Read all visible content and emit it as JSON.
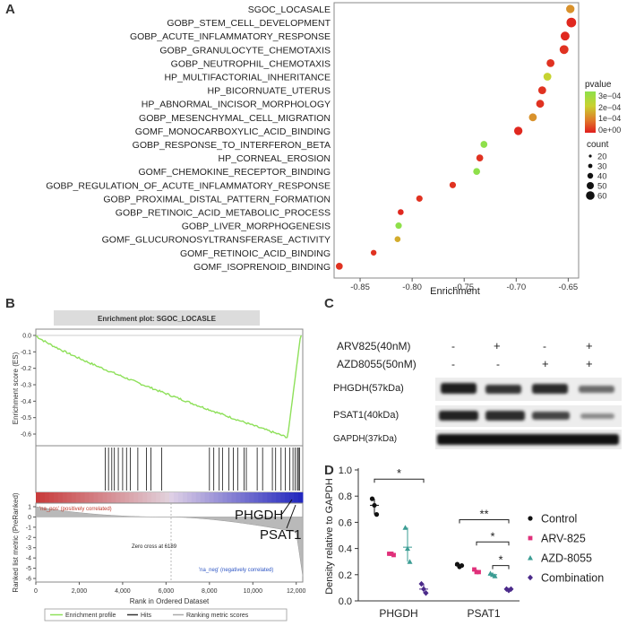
{
  "panels": {
    "a": "A",
    "b": "B",
    "c": "C",
    "d": "D"
  },
  "panel_a": {
    "chart_data": {
      "type": "scatter",
      "terms": [
        "SGOC_LOCASALE",
        "GOBP_STEM_CELL_DEVELOPMENT",
        "GOBP_ACUTE_INFLAMMATORY_RESPONSE",
        "GOBP_GRANULOCYTE_CHEMOTAXIS",
        "GOBP_NEUTROPHIL_CHEMOTAXIS",
        "HP_MULTIFACTORIAL_INHERITANCE",
        "HP_BICORNUATE_UTERUS",
        "HP_ABNORMAL_INCISOR_MORPHOLOGY",
        "GOBP_MESENCHYMAL_CELL_MIGRATION",
        "GOMF_MONOCARBOXYLIC_ACID_BINDING",
        "GOBP_RESPONSE_TO_INTERFERON_BETA",
        "HP_CORNEAL_EROSION",
        "GOMF_CHEMOKINE_RECEPTOR_BINDING",
        "GOBP_REGULATION_OF_ACUTE_INFLAMMATORY_RESPONSE",
        "GOBP_PROXIMAL_DISTAL_PATTERN_FORMATION",
        "GOBP_RETINOIC_ACID_METABOLIC_PROCESS",
        "GOBP_LIVER_MORPHOGENESIS",
        "GOMF_GLUCURONOSYLTRANSFERASE_ACTIVITY",
        "GOMF_RETINOIC_ACID_BINDING",
        "GOMF_ISOPRENOID_BINDING"
      ],
      "enrichment": [
        -0.648,
        -0.647,
        -0.653,
        -0.654,
        -0.667,
        -0.67,
        -0.675,
        -0.677,
        -0.684,
        -0.698,
        -0.731,
        -0.735,
        -0.738,
        -0.761,
        -0.793,
        -0.811,
        -0.813,
        -0.814,
        -0.837,
        -0.87
      ],
      "pvalue": [
        0.00012,
        1e-05,
        1e-05,
        2e-05,
        2e-05,
        0.0002,
        2e-05,
        2e-05,
        0.00012,
        1e-05,
        0.0003,
        2e-05,
        0.0003,
        2e-05,
        2e-05,
        1e-05,
        0.0003,
        0.00015,
        2e-05,
        2e-05
      ],
      "count": [
        45,
        58,
        50,
        50,
        40,
        40,
        40,
        40,
        40,
        45,
        30,
        30,
        30,
        25,
        25,
        20,
        25,
        20,
        18,
        30
      ],
      "xlabel": "Enrichment",
      "xticks": [
        "-0.85",
        "-0.80",
        "-0.75",
        "-0.70",
        "-0.65"
      ],
      "xlim": [
        -0.875,
        -0.64
      ],
      "legend_pvalue_title": "pvalue",
      "legend_pvalue_ticks": [
        "3e−04",
        "2e−04",
        "1e−04",
        "0e+00"
      ],
      "legend_count_title": "count",
      "legend_count_values": [
        "20",
        "30",
        "40",
        "50",
        "60"
      ]
    }
  },
  "panel_b": {
    "title": "Enrichment plot: SGOC_LOCASLE",
    "es_ylabel": "Enrichment score (ES)",
    "es_yticks": [
      "0.0",
      "-0.1",
      "-0.2",
      "-0.3",
      "-0.4",
      "-0.5",
      "-0.6"
    ],
    "metric_ylabel": "Ranked list metric (PreRanked)",
    "metric_yticks": [
      "1",
      "0",
      "-1",
      "-2",
      "-3",
      "-4",
      "-5",
      "-6"
    ],
    "xticks": [
      "0",
      "2,000",
      "4,000",
      "6,000",
      "8,000",
      "10,000",
      "12,000"
    ],
    "xlabel": "Rank in Ordered Dataset",
    "pos_label": "'na_pos' (positively correlated)",
    "neg_label": "'na_neg' (negatively correlated)",
    "zero_cross": "Zero cross at 6189",
    "gene1": "PHGDH",
    "gene2": "PSAT1",
    "legend_profile": "Enrichment profile",
    "legend_hits": "Hits",
    "legend_ranking": "Ranking metric scores"
  },
  "panel_c": {
    "row1_label": "ARV825(40nM)",
    "row2_label": "AZD8055(50nM)",
    "row1_signs": [
      "-",
      "+",
      "-",
      "+"
    ],
    "row2_signs": [
      "-",
      "-",
      "+",
      "+"
    ],
    "band1_label": "PHGDH(57kDa)",
    "band2_label": "PSAT1(40kDa)",
    "band3_label": "GAPDH(37kDa)"
  },
  "panel_d": {
    "chart_data": {
      "type": "scatter",
      "ylabel": "Density relative to GAPDH",
      "ylim": [
        0.0,
        1.0
      ],
      "yticks": [
        "0.0",
        "0.2",
        "0.4",
        "0.6",
        "0.8",
        "1.0"
      ],
      "categories": [
        "PHGDH",
        "PSAT1"
      ],
      "series": [
        {
          "name": "Control",
          "color": "#111111",
          "marker": "circle",
          "values": [
            [
              0.78,
              0.73,
              0.66
            ],
            [
              0.28,
              0.26,
              0.27
            ]
          ],
          "means": [
            0.73,
            0.27
          ]
        },
        {
          "name": "ARV-825",
          "color": "#e0307a",
          "marker": "square",
          "values": [
            [
              0.36,
              0.36,
              0.35
            ],
            [
              0.24,
              0.22,
              0.22
            ]
          ],
          "means": [
            0.36,
            0.23
          ]
        },
        {
          "name": "AZD-8055",
          "color": "#3a9c93",
          "marker": "triangle",
          "values": [
            [
              0.56,
              0.4,
              0.3
            ],
            [
              0.21,
              0.2,
              0.19
            ]
          ],
          "means": [
            0.41,
            0.2
          ]
        },
        {
          "name": "Combination",
          "color": "#4b2a8a",
          "marker": "diamond",
          "values": [
            [
              0.13,
              0.09,
              0.06
            ],
            [
              0.09,
              0.08,
              0.09
            ]
          ],
          "means": [
            0.09,
            0.09
          ]
        }
      ],
      "significance": [
        "*",
        "**",
        "*",
        "*"
      ]
    }
  },
  "colors": {
    "bg": "#ffffff",
    "es_line": "#8ee05a",
    "gsea_title_bg": "#e0e0e0"
  }
}
